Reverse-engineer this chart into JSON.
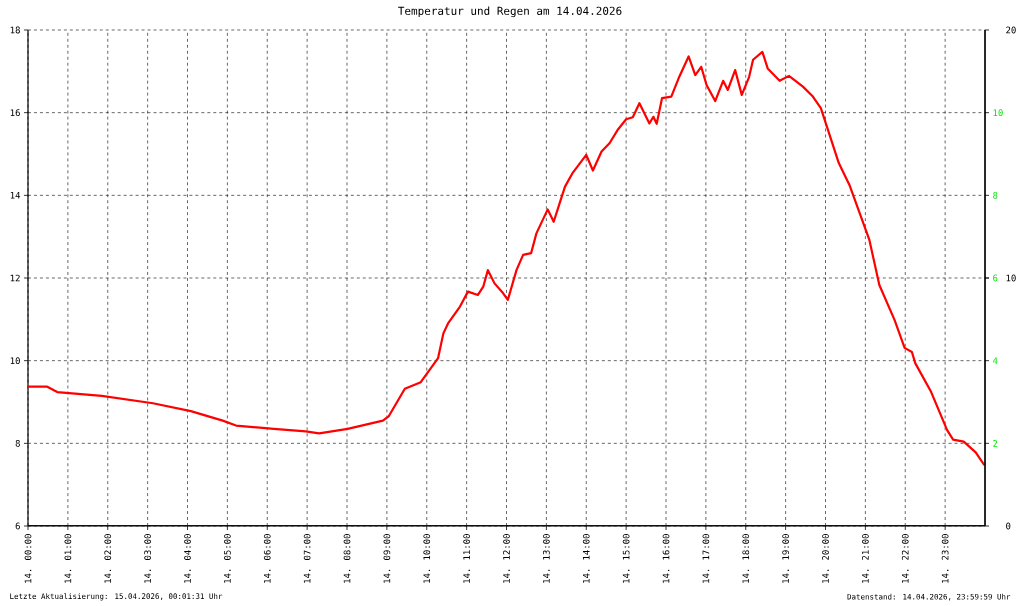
{
  "chart_data": {
    "type": "line",
    "title": "Temperatur und Regen am 14.04.2026",
    "annotations": [
      "Letzte Aktualisierung: 15.04.2026, 00:01:31 Uhr",
      "Datenstand: 14.04.2026, 23:59:59 Uhr"
    ],
    "series": [
      {
        "color": "#ff0000",
        "x": [
          "2026-04-14T00:00",
          "2026-04-14T00:29",
          "2026-04-14T00:44",
          "2026-04-14T01:51",
          "2026-04-14T03:08",
          "2026-04-14T04:05",
          "2026-04-14T04:53",
          "2026-04-14T05:13",
          "2026-04-14T06:10",
          "2026-04-14T06:58",
          "2026-04-14T07:18",
          "2026-04-14T08:01",
          "2026-04-14T08:54",
          "2026-04-14T09:03",
          "2026-04-14T09:27",
          "2026-04-14T09:51",
          "2026-04-14T10:17",
          "2026-04-14T10:25",
          "2026-04-14T10:32",
          "2026-04-14T10:50",
          "2026-04-14T11:02",
          "2026-04-14T11:17",
          "2026-04-14T11:25",
          "2026-04-14T11:32",
          "2026-04-14T11:42",
          "2026-04-14T11:55",
          "2026-04-14T12:02",
          "2026-04-14T12:15",
          "2026-04-14T12:25",
          "2026-04-14T12:37",
          "2026-04-14T12:45",
          "2026-04-14T13:02",
          "2026-04-14T13:11",
          "2026-04-14T13:20",
          "2026-04-14T13:28",
          "2026-04-14T13:39",
          "2026-04-14T14:00",
          "2026-04-14T14:10",
          "2026-04-14T14:23",
          "2026-04-14T14:35",
          "2026-04-14T14:48",
          "2026-04-14T15:00",
          "2026-04-14T15:10",
          "2026-04-14T15:20",
          "2026-04-14T15:35",
          "2026-04-14T15:41",
          "2026-04-14T15:46",
          "2026-04-14T15:54",
          "2026-04-14T16:08",
          "2026-04-14T16:20",
          "2026-04-14T16:34",
          "2026-04-14T16:44",
          "2026-04-14T16:53",
          "2026-04-14T17:01",
          "2026-04-14T17:14",
          "2026-04-14T17:26",
          "2026-04-14T17:33",
          "2026-04-14T17:44",
          "2026-04-14T17:54",
          "2026-04-14T18:05",
          "2026-04-14T18:11",
          "2026-04-14T18:25",
          "2026-04-14T18:33",
          "2026-04-14T18:51",
          "2026-04-14T19:05",
          "2026-04-14T19:26",
          "2026-04-14T19:41",
          "2026-04-14T19:53",
          "2026-04-14T20:20",
          "2026-04-14T20:36",
          "2026-04-14T21:06",
          "2026-04-14T21:21",
          "2026-04-14T21:44",
          "2026-04-14T21:59",
          "2026-04-14T22:10",
          "2026-04-14T22:15",
          "2026-04-14T22:39",
          "2026-04-14T23:03",
          "2026-04-14T23:12",
          "2026-04-14T23:28",
          "2026-04-14T23:46",
          "2026-04-14T23:59"
        ],
        "values": [
          9.37,
          9.37,
          9.24,
          9.15,
          8.97,
          8.78,
          8.55,
          8.43,
          8.35,
          8.29,
          8.24,
          8.35,
          8.55,
          8.66,
          9.32,
          9.48,
          10.06,
          10.66,
          10.9,
          11.31,
          11.67,
          11.59,
          11.79,
          12.19,
          11.87,
          11.63,
          11.47,
          12.19,
          12.56,
          12.6,
          13.08,
          13.66,
          13.36,
          13.81,
          14.21,
          14.53,
          14.98,
          14.6,
          15.06,
          15.26,
          15.6,
          15.84,
          15.89,
          16.23,
          15.74,
          15.9,
          15.73,
          16.35,
          16.39,
          16.87,
          17.36,
          16.91,
          17.11,
          16.67,
          16.28,
          16.77,
          16.55,
          17.03,
          16.43,
          16.86,
          17.28,
          17.47,
          17.07,
          16.77,
          16.89,
          16.63,
          16.39,
          16.11,
          14.78,
          14.25,
          12.92,
          11.83,
          10.98,
          10.31,
          10.21,
          9.94,
          9.24,
          8.32,
          8.09,
          8.04,
          7.78,
          7.47
        ]
      },
      {
        "color": "#000080",
        "axis": "y2",
        "x": [
          "2026-04-14T00:00",
          "2026-04-14T23:59"
        ],
        "values": [
          0,
          0
        ]
      }
    ],
    "xlim": [
      "2026-04-14T00:00",
      "2026-04-15T00:00"
    ],
    "xticks": [
      {
        "value": "2026-04-14T00:00",
        "label": "14. 00:00"
      },
      {
        "value": "2026-04-14T01:00",
        "label": "14. 01:00"
      },
      {
        "value": "2026-04-14T02:00",
        "label": "14. 02:00"
      },
      {
        "value": "2026-04-14T03:00",
        "label": "14. 03:00"
      },
      {
        "value": "2026-04-14T04:00",
        "label": "14. 04:00"
      },
      {
        "value": "2026-04-14T05:00",
        "label": "14. 05:00"
      },
      {
        "value": "2026-04-14T06:00",
        "label": "14. 06:00"
      },
      {
        "value": "2026-04-14T07:00",
        "label": "14. 07:00"
      },
      {
        "value": "2026-04-14T08:00",
        "label": "14. 08:00"
      },
      {
        "value": "2026-04-14T09:00",
        "label": "14. 09:00"
      },
      {
        "value": "2026-04-14T10:00",
        "label": "14. 10:00"
      },
      {
        "value": "2026-04-14T11:00",
        "label": "14. 11:00"
      },
      {
        "value": "2026-04-14T12:00",
        "label": "14. 12:00"
      },
      {
        "value": "2026-04-14T13:00",
        "label": "14. 13:00"
      },
      {
        "value": "2026-04-14T14:00",
        "label": "14. 14:00"
      },
      {
        "value": "2026-04-14T15:00",
        "label": "14. 15:00"
      },
      {
        "value": "2026-04-14T16:00",
        "label": "14. 16:00"
      },
      {
        "value": "2026-04-14T17:00",
        "label": "14. 17:00"
      },
      {
        "value": "2026-04-14T18:00",
        "label": "14. 18:00"
      },
      {
        "value": "2026-04-14T19:00",
        "label": "14. 19:00"
      },
      {
        "value": "2026-04-14T20:00",
        "label": "14. 20:00"
      },
      {
        "value": "2026-04-14T21:00",
        "label": "14. 21:00"
      },
      {
        "value": "2026-04-14T22:00",
        "label": "14. 22:00"
      },
      {
        "value": "2026-04-14T23:00",
        "label": "14. 23:00"
      }
    ],
    "ylim": [
      6,
      18
    ],
    "yticks": [
      6,
      8,
      10,
      12,
      14,
      16,
      18
    ],
    "y2lim": [
      0,
      20
    ],
    "y2ticks": [
      0,
      10,
      20
    ],
    "y3lim": [
      0,
      12
    ],
    "y3ticks": [
      2,
      4,
      6,
      8,
      10
    ],
    "grid": true
  }
}
